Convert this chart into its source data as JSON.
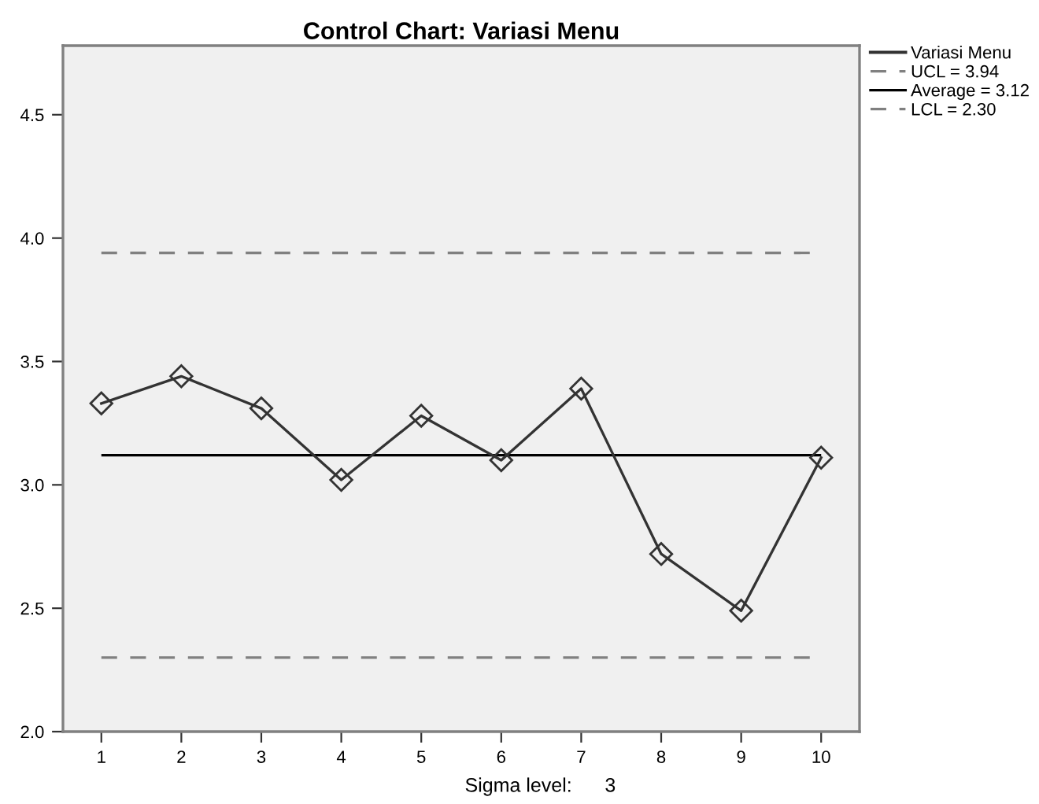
{
  "chart_data": {
    "type": "line",
    "title": "Control Chart: Variasi Menu",
    "categories": [
      "1",
      "2",
      "3",
      "4",
      "5",
      "6",
      "7",
      "8",
      "9",
      "10"
    ],
    "series": [
      {
        "name": "Variasi Menu",
        "color": "#333333",
        "values": [
          3.33,
          3.44,
          3.31,
          3.02,
          3.28,
          3.1,
          3.39,
          2.72,
          2.49,
          3.11
        ]
      }
    ],
    "marker": "diamond",
    "line_style": "solid",
    "ylim": [
      2.0,
      4.78
    ],
    "yticks": [
      {
        "value": 2,
        "label": "2.0"
      },
      2.5,
      {
        "value": 3,
        "label": "3.0"
      },
      3.5,
      {
        "value": 4,
        "label": "4.0"
      },
      4.5
    ],
    "ref_lines": [
      {
        "axis": "y",
        "value": 3.94,
        "label": "UCL = 3.94",
        "color": "#808080",
        "line_style": "dashed"
      },
      {
        "axis": "y",
        "value": 3.12,
        "label": "Average = 3.12",
        "color": "#000000",
        "line_style": "solid"
      },
      {
        "axis": "y",
        "value": 2.3,
        "label": "LCL = 2.30",
        "color": "#808080",
        "line_style": "dashed"
      }
    ],
    "annotations": [
      "Sigma level:      3"
    ],
    "grid": false,
    "legend": "top right"
  }
}
